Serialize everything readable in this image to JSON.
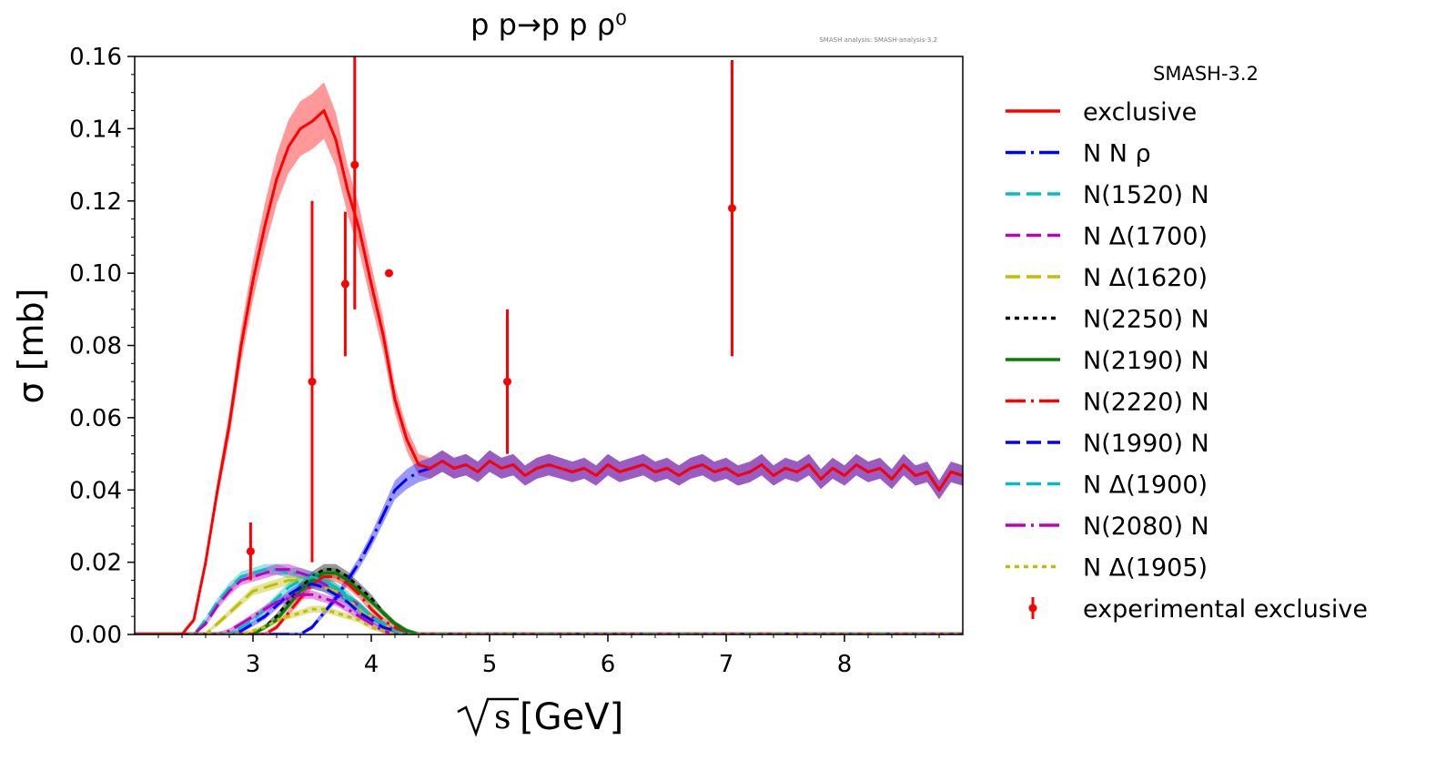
{
  "chart_data": {
    "type": "line",
    "title": "p p→p p ρ⁰",
    "watermark": "SMASH analysis: SMASH-analysis-3.2",
    "xlabel_root": "s",
    "xlabel_unit": "[GeV]",
    "ylabel": "σ [mb]",
    "xlim": [
      2.0,
      9.0
    ],
    "ylim": [
      0.0,
      0.16
    ],
    "xticks": [
      3,
      4,
      5,
      6,
      7,
      8
    ],
    "xtick_labels": [
      "3",
      "4",
      "5",
      "6",
      "7",
      "8"
    ],
    "yticks": [
      0.0,
      0.02,
      0.04,
      0.06,
      0.08,
      0.1,
      0.12,
      0.14,
      0.16
    ],
    "ytick_labels": [
      "0.00",
      "0.02",
      "0.04",
      "0.06",
      "0.08",
      "0.10",
      "0.12",
      "0.14",
      "0.16"
    ],
    "legend_title": "SMASH-3.2",
    "legend_position": "outside right",
    "series": [
      {
        "name": "exclusive",
        "color": "#ff0000",
        "style": "solid",
        "x": [
          2.0,
          2.4,
          2.5,
          2.6,
          2.7,
          2.8,
          2.9,
          3.0,
          3.1,
          3.2,
          3.3,
          3.4,
          3.5,
          3.6,
          3.7,
          3.8,
          3.9,
          4.0,
          4.1,
          4.2,
          4.3,
          4.4,
          4.5,
          4.6,
          4.7,
          4.8,
          4.9,
          5.0,
          5.1,
          5.2,
          5.3,
          5.4,
          5.5,
          5.6,
          5.7,
          5.8,
          5.9,
          6.0,
          6.1,
          6.2,
          6.3,
          6.4,
          6.5,
          6.6,
          6.7,
          6.8,
          6.9,
          7.0,
          7.1,
          7.2,
          7.3,
          7.4,
          7.5,
          7.6,
          7.7,
          7.8,
          7.9,
          8.0,
          8.1,
          8.2,
          8.3,
          8.4,
          8.5,
          8.6,
          8.7,
          8.8,
          8.9,
          9.0
        ],
        "y": [
          0.0,
          0.0,
          0.004,
          0.02,
          0.04,
          0.058,
          0.08,
          0.098,
          0.113,
          0.126,
          0.135,
          0.14,
          0.142,
          0.145,
          0.137,
          0.123,
          0.112,
          0.097,
          0.083,
          0.065,
          0.054,
          0.047,
          0.046,
          0.048,
          0.046,
          0.047,
          0.045,
          0.048,
          0.046,
          0.047,
          0.044,
          0.046,
          0.047,
          0.046,
          0.045,
          0.046,
          0.044,
          0.047,
          0.045,
          0.046,
          0.047,
          0.045,
          0.046,
          0.044,
          0.046,
          0.047,
          0.045,
          0.046,
          0.044,
          0.045,
          0.047,
          0.044,
          0.046,
          0.045,
          0.047,
          0.043,
          0.046,
          0.044,
          0.047,
          0.045,
          0.046,
          0.043,
          0.047,
          0.044,
          0.045,
          0.04,
          0.045,
          0.044
        ]
      },
      {
        "name": "N N ρ",
        "color": "#0000ff",
        "style": "dashdot",
        "x": [
          2.0,
          3.4,
          3.5,
          3.6,
          3.7,
          3.8,
          3.9,
          4.0,
          4.1,
          4.2,
          4.3,
          4.4,
          4.5,
          4.6,
          4.7,
          4.8,
          4.9,
          5.0,
          5.1,
          5.2,
          5.3,
          5.4,
          5.5,
          5.6,
          5.7,
          5.8,
          5.9,
          6.0,
          6.1,
          6.2,
          6.3,
          6.4,
          6.5,
          6.6,
          6.7,
          6.8,
          6.9,
          7.0,
          7.1,
          7.2,
          7.3,
          7.4,
          7.5,
          7.6,
          7.7,
          7.8,
          7.9,
          8.0,
          8.1,
          8.2,
          8.3,
          8.4,
          8.5,
          8.6,
          8.7,
          8.8,
          8.9,
          9.0
        ],
        "y": [
          0.0,
          0.0,
          0.002,
          0.006,
          0.01,
          0.015,
          0.02,
          0.026,
          0.033,
          0.04,
          0.043,
          0.045,
          0.046,
          0.048,
          0.046,
          0.047,
          0.045,
          0.048,
          0.046,
          0.047,
          0.044,
          0.046,
          0.047,
          0.046,
          0.045,
          0.046,
          0.044,
          0.047,
          0.045,
          0.046,
          0.047,
          0.045,
          0.046,
          0.044,
          0.046,
          0.047,
          0.045,
          0.046,
          0.044,
          0.045,
          0.047,
          0.044,
          0.046,
          0.045,
          0.047,
          0.043,
          0.046,
          0.044,
          0.047,
          0.045,
          0.046,
          0.043,
          0.047,
          0.044,
          0.045,
          0.04,
          0.045,
          0.044
        ]
      },
      {
        "name": "N(1520) N",
        "color": "#00bfbf",
        "style": "dashed",
        "x": [
          2.0,
          2.5,
          2.6,
          2.7,
          2.8,
          2.9,
          3.0,
          3.1,
          3.2,
          3.3,
          3.4,
          3.5,
          3.6,
          3.7,
          3.8,
          3.9,
          4.0,
          4.1,
          4.2,
          4.3,
          4.4,
          9.0
        ],
        "y": [
          0.0,
          0.0,
          0.004,
          0.009,
          0.013,
          0.016,
          0.017,
          0.018,
          0.018,
          0.017,
          0.017,
          0.016,
          0.015,
          0.013,
          0.011,
          0.008,
          0.005,
          0.003,
          0.001,
          0.0,
          0.0,
          0.0
        ]
      },
      {
        "name": "N Δ(1700)",
        "color": "#bf00bf",
        "style": "dashed",
        "x": [
          2.0,
          2.5,
          2.6,
          2.7,
          2.8,
          2.9,
          3.0,
          3.1,
          3.2,
          3.3,
          3.4,
          3.5,
          3.6,
          3.7,
          3.8,
          3.9,
          4.0,
          4.1,
          4.2,
          4.3,
          4.4,
          9.0
        ],
        "y": [
          0.0,
          0.0,
          0.003,
          0.008,
          0.012,
          0.015,
          0.016,
          0.017,
          0.018,
          0.018,
          0.017,
          0.016,
          0.014,
          0.012,
          0.01,
          0.008,
          0.005,
          0.003,
          0.001,
          0.0,
          0.0,
          0.0
        ]
      },
      {
        "name": "N Δ(1620)",
        "color": "#bfbf00",
        "style": "dashed",
        "x": [
          2.0,
          2.6,
          2.7,
          2.8,
          2.9,
          3.0,
          3.1,
          3.2,
          3.3,
          3.4,
          3.5,
          3.6,
          3.7,
          3.8,
          3.9,
          4.0,
          4.1,
          4.2,
          4.3,
          9.0
        ],
        "y": [
          0.0,
          0.0,
          0.003,
          0.006,
          0.009,
          0.012,
          0.013,
          0.014,
          0.015,
          0.015,
          0.014,
          0.013,
          0.012,
          0.01,
          0.007,
          0.005,
          0.003,
          0.001,
          0.0,
          0.0
        ]
      },
      {
        "name": "N(2250) N",
        "color": "#000000",
        "style": "dotted",
        "x": [
          2.0,
          3.0,
          3.1,
          3.2,
          3.3,
          3.4,
          3.5,
          3.6,
          3.7,
          3.8,
          3.9,
          4.0,
          4.1,
          4.2,
          4.3,
          4.4,
          9.0
        ],
        "y": [
          0.0,
          0.0,
          0.002,
          0.005,
          0.009,
          0.013,
          0.016,
          0.018,
          0.018,
          0.016,
          0.013,
          0.01,
          0.006,
          0.003,
          0.001,
          0.0,
          0.0
        ]
      },
      {
        "name": "N(2190) N",
        "color": "#008000",
        "style": "solid",
        "x": [
          2.0,
          3.0,
          3.1,
          3.2,
          3.3,
          3.4,
          3.5,
          3.6,
          3.7,
          3.8,
          3.9,
          4.0,
          4.1,
          4.2,
          4.3,
          4.4,
          9.0
        ],
        "y": [
          0.0,
          0.0,
          0.002,
          0.004,
          0.008,
          0.012,
          0.015,
          0.017,
          0.017,
          0.015,
          0.012,
          0.009,
          0.006,
          0.003,
          0.001,
          0.0,
          0.0
        ]
      },
      {
        "name": "N(2220) N",
        "color": "#ff0000",
        "style": "dashdot",
        "x": [
          2.0,
          3.1,
          3.2,
          3.3,
          3.4,
          3.5,
          3.6,
          3.7,
          3.8,
          3.9,
          4.0,
          4.1,
          4.2,
          4.3,
          9.0
        ],
        "y": [
          0.0,
          0.0,
          0.002,
          0.006,
          0.01,
          0.014,
          0.016,
          0.016,
          0.014,
          0.011,
          0.007,
          0.004,
          0.002,
          0.0,
          0.0
        ]
      },
      {
        "name": "N(1990) N",
        "color": "#0000ff",
        "style": "dashed",
        "x": [
          2.0,
          2.8,
          2.9,
          3.0,
          3.1,
          3.2,
          3.3,
          3.4,
          3.5,
          3.6,
          3.7,
          3.8,
          3.9,
          4.0,
          4.1,
          4.2,
          4.3,
          9.0
        ],
        "y": [
          0.0,
          0.0,
          0.001,
          0.003,
          0.005,
          0.008,
          0.011,
          0.013,
          0.014,
          0.013,
          0.011,
          0.009,
          0.006,
          0.004,
          0.002,
          0.001,
          0.0,
          0.0
        ]
      },
      {
        "name": "N Δ(1900)",
        "color": "#00bfbf",
        "style": "dashed",
        "x": [
          2.0,
          2.8,
          2.9,
          3.0,
          3.1,
          3.2,
          3.3,
          3.4,
          3.5,
          3.6,
          3.7,
          3.8,
          3.9,
          4.0,
          4.1,
          4.2,
          4.3,
          9.0
        ],
        "y": [
          0.0,
          0.0,
          0.002,
          0.004,
          0.007,
          0.01,
          0.013,
          0.015,
          0.016,
          0.015,
          0.013,
          0.01,
          0.008,
          0.005,
          0.003,
          0.001,
          0.0,
          0.0
        ]
      },
      {
        "name": "N(2080) N",
        "color": "#bf00bf",
        "style": "dashdot",
        "x": [
          2.0,
          2.7,
          2.8,
          2.9,
          3.0,
          3.1,
          3.2,
          3.3,
          3.4,
          3.5,
          3.6,
          3.7,
          3.8,
          3.9,
          4.0,
          4.1,
          4.2,
          9.0
        ],
        "y": [
          0.0,
          0.0,
          0.001,
          0.003,
          0.005,
          0.007,
          0.009,
          0.01,
          0.011,
          0.011,
          0.01,
          0.009,
          0.007,
          0.005,
          0.003,
          0.001,
          0.0,
          0.0
        ]
      },
      {
        "name": "N Δ(1905)",
        "color": "#bfbf00",
        "style": "dotted",
        "x": [
          2.0,
          2.9,
          3.0,
          3.1,
          3.2,
          3.3,
          3.4,
          3.5,
          3.6,
          3.7,
          3.8,
          3.9,
          4.0,
          4.1,
          4.2,
          9.0
        ],
        "y": [
          0.0,
          0.0,
          0.001,
          0.002,
          0.004,
          0.005,
          0.006,
          0.007,
          0.007,
          0.006,
          0.005,
          0.004,
          0.002,
          0.001,
          0.0,
          0.0
        ]
      }
    ],
    "experimental": {
      "name": "experimental exclusive",
      "color": "#ff0000",
      "points": [
        {
          "x": 2.98,
          "y": 0.023,
          "ylo": 0.015,
          "yhi": 0.031
        },
        {
          "x": 3.5,
          "y": 0.07,
          "ylo": 0.02,
          "yhi": 0.12
        },
        {
          "x": 3.78,
          "y": 0.097,
          "ylo": 0.077,
          "yhi": 0.117
        },
        {
          "x": 3.86,
          "y": 0.13,
          "ylo": 0.09,
          "yhi": 0.17
        },
        {
          "x": 4.15,
          "y": 0.1,
          "ylo": 0.1,
          "yhi": 0.1
        },
        {
          "x": 5.15,
          "y": 0.07,
          "ylo": 0.05,
          "yhi": 0.09
        },
        {
          "x": 7.05,
          "y": 0.118,
          "ylo": 0.077,
          "yhi": 0.159
        }
      ]
    }
  }
}
